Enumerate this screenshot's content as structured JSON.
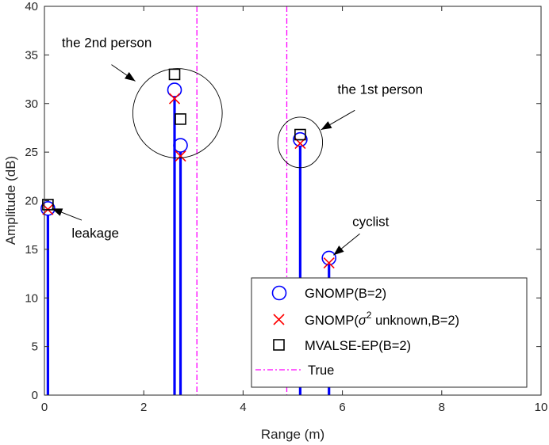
{
  "chart_data": {
    "type": "stem",
    "xlabel": "Range (m)",
    "ylabel": "Amplitude (dB)",
    "xlim": [
      0,
      10
    ],
    "ylim": [
      0,
      40
    ],
    "xticks": [
      "0",
      "2",
      "4",
      "6",
      "8",
      "10"
    ],
    "yticks": [
      "0",
      "5",
      "10",
      "15",
      "20",
      "25",
      "30",
      "35",
      "40"
    ],
    "grid": false,
    "legend_position": "bottom-right",
    "series": [
      {
        "name": "GNOMP(B=2)",
        "marker": "circle",
        "color": "#0000ff",
        "points": [
          {
            "x": 0.07,
            "y": 19.2
          },
          {
            "x": 2.62,
            "y": 31.4
          },
          {
            "x": 2.74,
            "y": 25.7
          },
          {
            "x": 5.15,
            "y": 26.3
          },
          {
            "x": 5.73,
            "y": 14.1
          }
        ]
      },
      {
        "name_prefix": "GNOMP(",
        "name_symbol": "σ",
        "name_superscript": "2",
        "name_suffix": " unknown,B=2)",
        "marker": "x",
        "color": "#ff0000",
        "points": [
          {
            "x": 0.07,
            "y": 19.1
          },
          {
            "x": 2.62,
            "y": 30.5
          },
          {
            "x": 2.74,
            "y": 24.6
          },
          {
            "x": 5.15,
            "y": 25.9
          },
          {
            "x": 5.73,
            "y": 13.6
          }
        ]
      },
      {
        "name": "MVALSE-EP(B=2)",
        "marker": "square",
        "color": "#000000",
        "points": [
          {
            "x": 0.07,
            "y": 19.6
          },
          {
            "x": 2.62,
            "y": 33.0
          },
          {
            "x": 2.74,
            "y": 28.4
          },
          {
            "x": 5.15,
            "y": 26.8
          }
        ]
      },
      {
        "name": "True",
        "style": "dash-dot vertical line",
        "color": "#ff00ff",
        "x": [
          3.07,
          4.88
        ]
      }
    ],
    "circles": [
      {
        "x": 2.68,
        "y": 29.0,
        "rx_data": 0.9,
        "ry_data": 4.6
      },
      {
        "x": 5.15,
        "y": 26.0,
        "rx_data": 0.45,
        "ry_data": 2.6
      }
    ],
    "annotations": [
      {
        "text": "the 2nd person",
        "x": 0.35,
        "y": 35.8,
        "arrow_from": [
          1.35,
          34.0
        ],
        "arrow_to": [
          1.83,
          32.3
        ]
      },
      {
        "text": "the 1st person",
        "x": 5.9,
        "y": 31.0,
        "arrow_from": [
          6.25,
          29.3
        ],
        "arrow_to": [
          5.57,
          27.3
        ]
      },
      {
        "text": "leakage",
        "x": 0.55,
        "y": 16.2,
        "arrow_from": [
          0.75,
          18.0
        ],
        "arrow_to": [
          0.15,
          19.2
        ]
      },
      {
        "text": "cyclist",
        "x": 6.2,
        "y": 17.4,
        "arrow_from": [
          6.35,
          16.6
        ],
        "arrow_to": [
          5.82,
          14.4
        ]
      }
    ]
  }
}
